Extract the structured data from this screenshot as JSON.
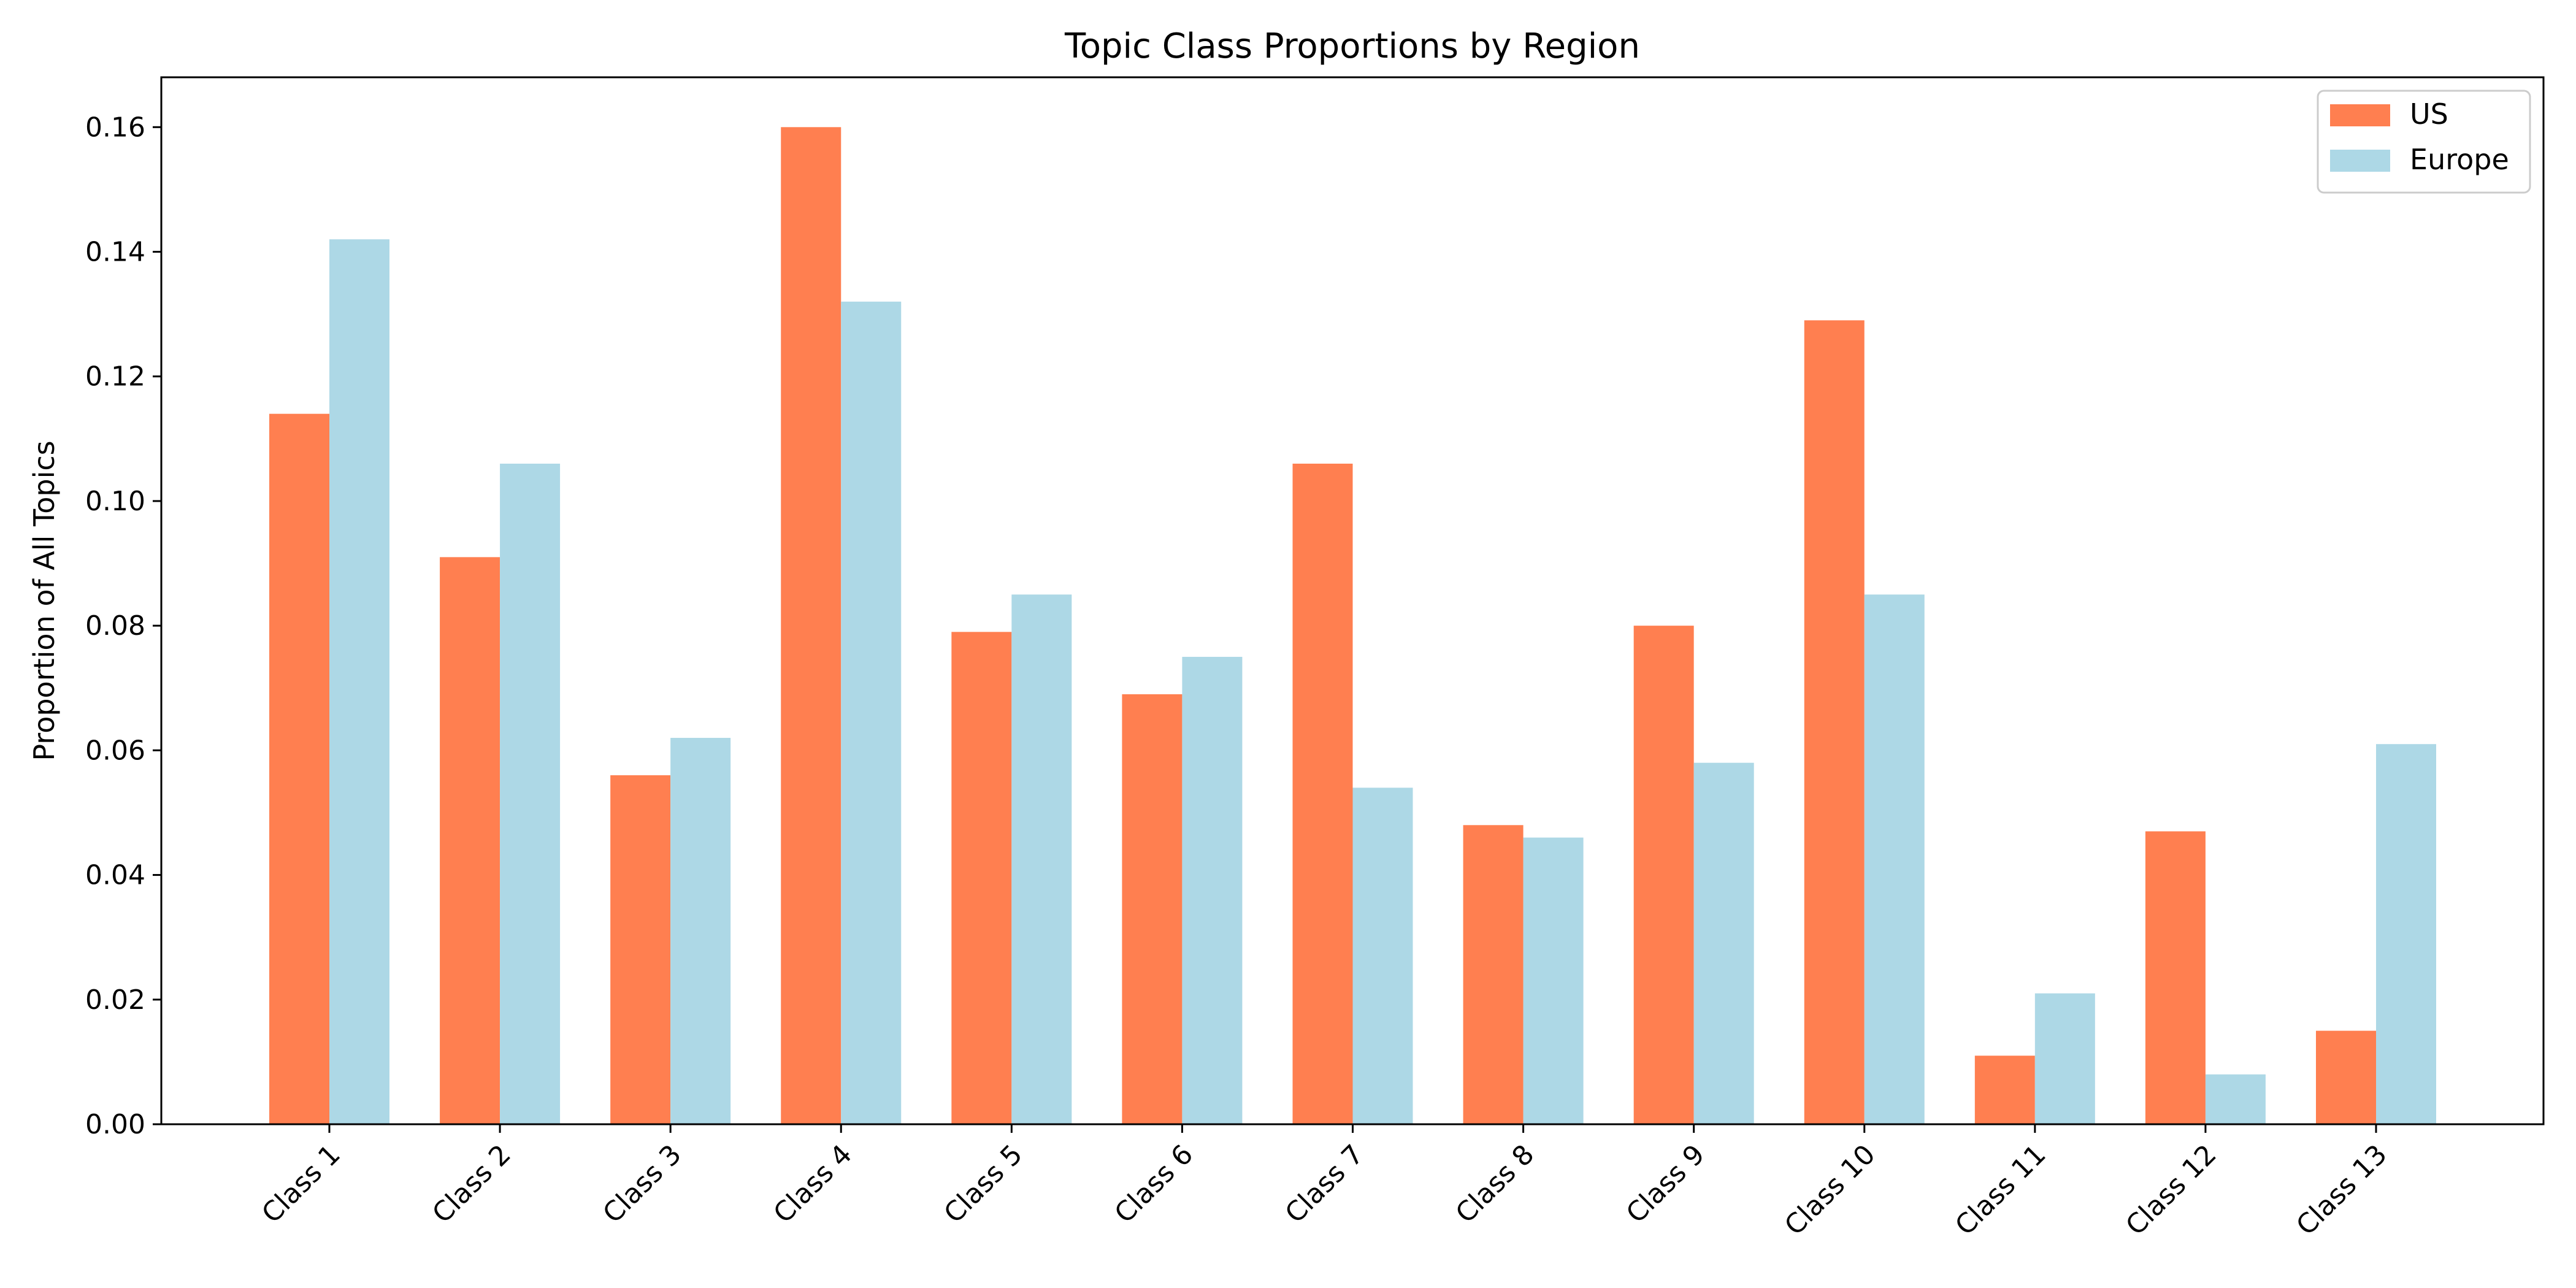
{
  "chart_data": {
    "type": "bar",
    "title": "Topic Class Proportions by Region",
    "xlabel": "",
    "ylabel": "Proportion of All Topics",
    "categories": [
      "Class 1",
      "Class 2",
      "Class 3",
      "Class 4",
      "Class 5",
      "Class 6",
      "Class 7",
      "Class 8",
      "Class 9",
      "Class 10",
      "Class 11",
      "Class 12",
      "Class 13"
    ],
    "series": [
      {
        "name": "US",
        "color": "#ff7f50",
        "values": [
          0.114,
          0.091,
          0.056,
          0.16,
          0.079,
          0.069,
          0.106,
          0.048,
          0.08,
          0.129,
          0.011,
          0.047,
          0.015
        ]
      },
      {
        "name": "Europe",
        "color": "#add8e6",
        "values": [
          0.142,
          0.106,
          0.062,
          0.132,
          0.085,
          0.075,
          0.054,
          0.046,
          0.058,
          0.085,
          0.021,
          0.008,
          0.061
        ]
      }
    ],
    "yticks": [
      "0.00",
      "0.02",
      "0.04",
      "0.06",
      "0.08",
      "0.10",
      "0.12",
      "0.14",
      "0.16"
    ],
    "ylim": [
      0,
      0.168
    ],
    "grid": false,
    "legend_position": "top-right"
  }
}
